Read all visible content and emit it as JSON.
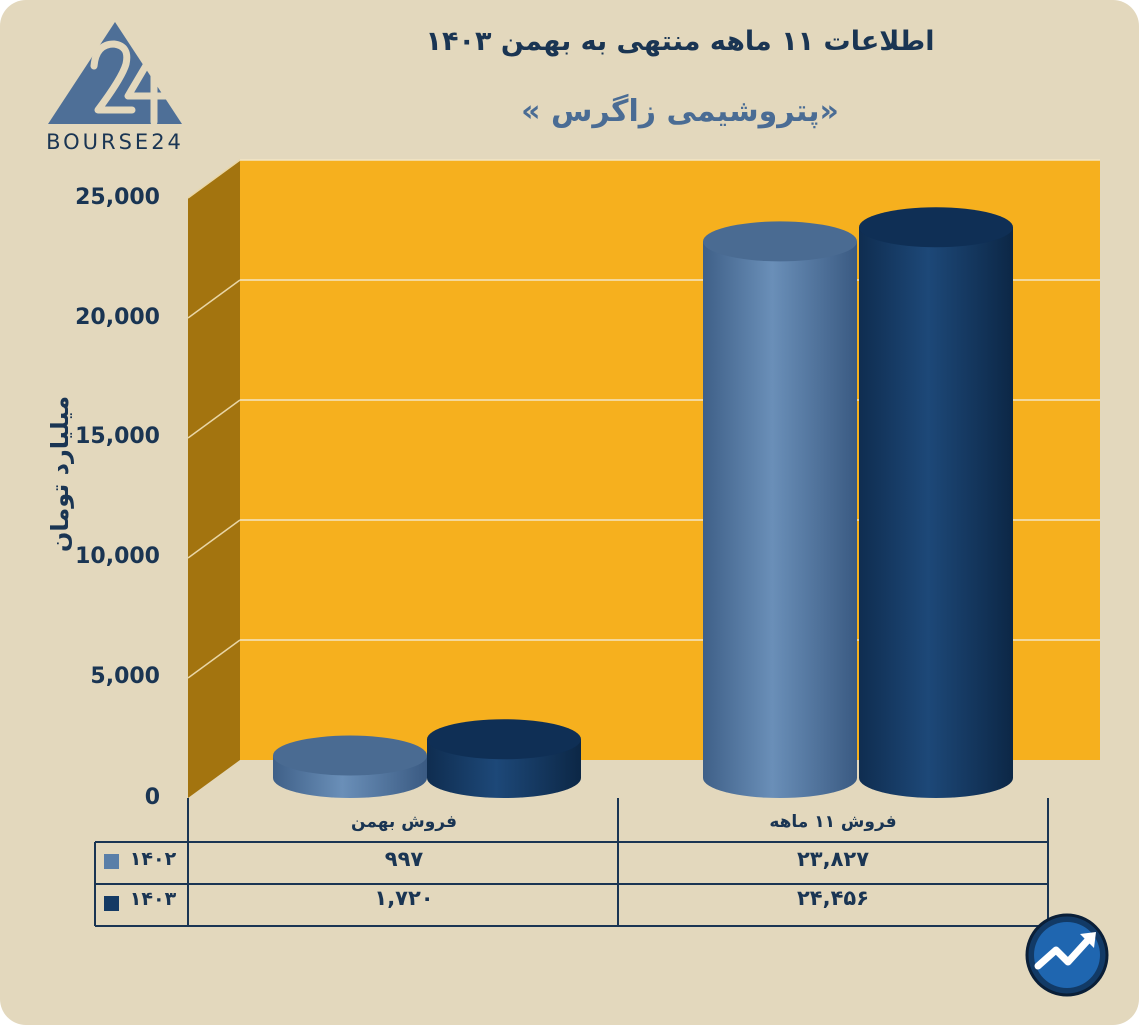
{
  "header": {
    "title": "اطلاعات ۱۱ ماهه منتهی به بهمن ۱۴۰۳",
    "subtitle": "«پتروشیمی زاگرس »"
  },
  "logo": {
    "text": "BOURSE24"
  },
  "colors": {
    "background": "#e3d8bd",
    "plot_back": "#f6b01e",
    "plot_side": "#a3740f",
    "series_1402": "#5a7fa8",
    "series_1403": "#153a64",
    "text": "#1a3553"
  },
  "chart_data": {
    "type": "bar",
    "ylabel": "میلیارد تومان",
    "ylim": [
      0,
      25000
    ],
    "yticks": [
      "0",
      "5,000",
      "10,000",
      "15,000",
      "20,000",
      "25,000"
    ],
    "categories": [
      "فروش بهمن",
      "فروش ۱۱ ماهه"
    ],
    "series": [
      {
        "name": "۱۴۰۲",
        "values": [
          997,
          23827
        ],
        "labels": [
          "۹۹۷",
          "۲۳,۸۲۷"
        ]
      },
      {
        "name": "۱۴۰۳",
        "values": [
          1720,
          24456
        ],
        "labels": [
          "۱,۷۲۰",
          "۲۴,۴۵۶"
        ]
      }
    ],
    "grid": true,
    "legend": "data-table"
  },
  "badge": {
    "icon": "chart-arrow-icon"
  }
}
